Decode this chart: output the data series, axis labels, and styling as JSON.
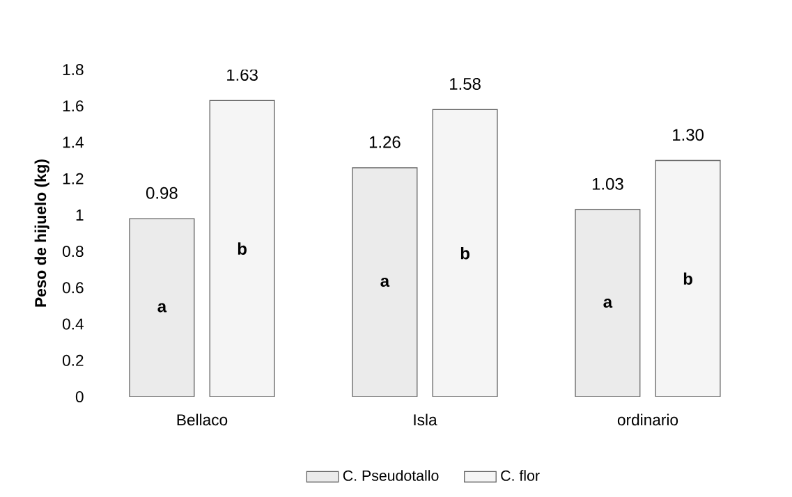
{
  "chart_data": {
    "type": "bar",
    "ylabel": "Peso de hijuelo (kg)",
    "categories": [
      "Bellaco",
      "Isla",
      "ordinario"
    ],
    "series": [
      {
        "name": "C. Pseudotallo",
        "color": "#ebebeb",
        "values": [
          0.98,
          1.26,
          1.03
        ],
        "value_labels": [
          "0.98",
          "1.26",
          "1.03"
        ]
      },
      {
        "name": "C. flor",
        "color": "#f5f5f5",
        "values": [
          1.63,
          1.58,
          1.3
        ],
        "value_labels": [
          "1.63",
          "1.58",
          "1.30"
        ]
      }
    ],
    "ylim": [
      0,
      1.8
    ],
    "yticks": [
      0,
      0.2,
      0.4,
      0.6,
      0.8,
      1,
      1.2,
      1.4,
      1.6,
      1.8
    ],
    "legend": "bottom",
    "annotations": [
      "a",
      "b",
      "a",
      "b",
      "a",
      "b"
    ]
  }
}
